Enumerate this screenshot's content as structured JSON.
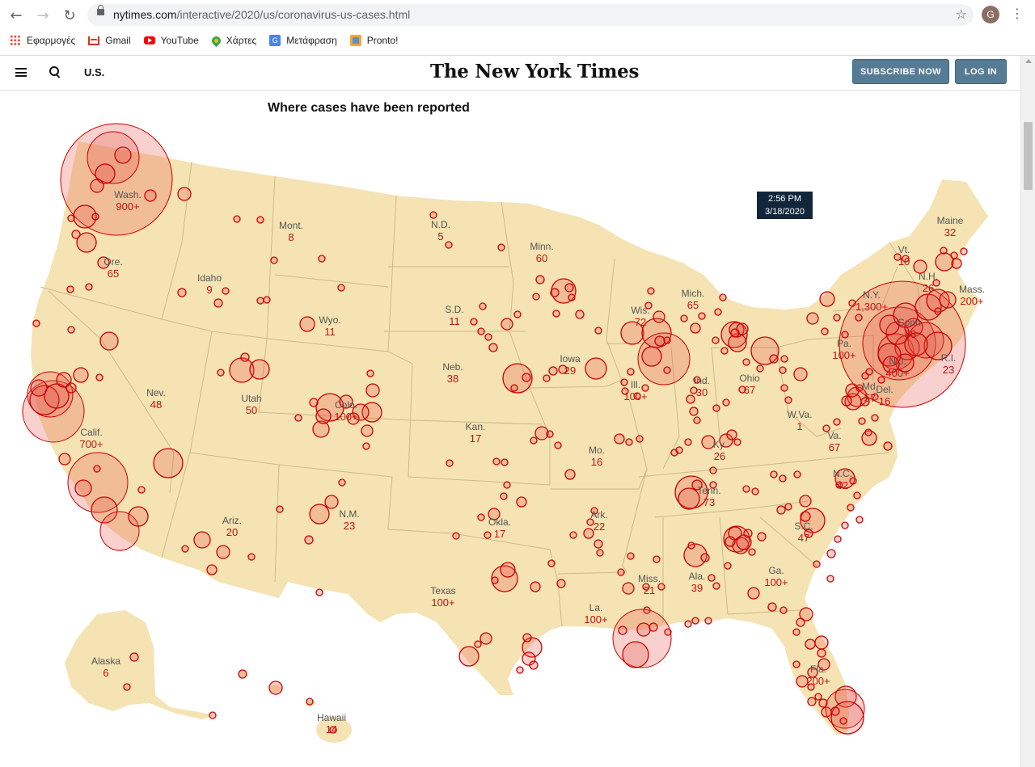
{
  "browser": {
    "url_host": "nytimes.com",
    "url_path": "/interactive/2020/us/coronavirus-us-cases.html",
    "profile_initial": "G",
    "bookmarks": [
      {
        "label": "Εφαρμογές",
        "icon": "apps-icon"
      },
      {
        "label": "Gmail",
        "icon": "gmail-icon"
      },
      {
        "label": "YouTube",
        "icon": "youtube-icon"
      },
      {
        "label": "Χάρτες",
        "icon": "maps-icon"
      },
      {
        "label": "Μετάφραση",
        "icon": "translate-icon"
      },
      {
        "label": "Pronto!",
        "icon": "pronto-icon"
      }
    ]
  },
  "header": {
    "section": "U.S.",
    "logo": "The New York Times",
    "subscribe_label": "SUBSCRIBE NOW",
    "login_label": "LOG IN",
    "button_color": "#567b95"
  },
  "map": {
    "title": "Where cases have been reported",
    "timestamp_time": "2:56 PM",
    "timestamp_date": "3/18/2020",
    "land_color": "#f5e3b3",
    "circle_stroke": "#cc0000",
    "circle_fill": "rgba(230,90,80,0.28)",
    "states": [
      {
        "name": "Wash.",
        "count": "900+"
      },
      {
        "name": "Ore.",
        "count": "65"
      },
      {
        "name": "Calif.",
        "count": "700+"
      },
      {
        "name": "Nev.",
        "count": "48"
      },
      {
        "name": "Idaho",
        "count": "9"
      },
      {
        "name": "Mont.",
        "count": "8"
      },
      {
        "name": "Wyo.",
        "count": "11"
      },
      {
        "name": "Utah",
        "count": "50"
      },
      {
        "name": "Colo.",
        "count": "100+"
      },
      {
        "name": "Ariz.",
        "count": "20"
      },
      {
        "name": "N.M.",
        "count": "23"
      },
      {
        "name": "N.D.",
        "count": "5"
      },
      {
        "name": "S.D.",
        "count": "11"
      },
      {
        "name": "Neb.",
        "count": "38"
      },
      {
        "name": "Kan.",
        "count": "17"
      },
      {
        "name": "Okla.",
        "count": "17"
      },
      {
        "name": "Texas",
        "count": "100+"
      },
      {
        "name": "Minn.",
        "count": "60"
      },
      {
        "name": "Iowa",
        "count": "29"
      },
      {
        "name": "Mo.",
        "count": "16"
      },
      {
        "name": "Ark.",
        "count": "22"
      },
      {
        "name": "La.",
        "count": "100+"
      },
      {
        "name": "Wis.",
        "count": "72"
      },
      {
        "name": "Ill.",
        "count": "100+"
      },
      {
        "name": "Mich.",
        "count": "65"
      },
      {
        "name": "Ind.",
        "count": "30"
      },
      {
        "name": "Ohio",
        "count": "67"
      },
      {
        "name": "Ky.",
        "count": "26"
      },
      {
        "name": "Tenn.",
        "count": "73"
      },
      {
        "name": "Miss.",
        "count": "21"
      },
      {
        "name": "Ala.",
        "count": "39"
      },
      {
        "name": "Ga.",
        "count": "100+"
      },
      {
        "name": "Fla.",
        "count": "200+"
      },
      {
        "name": "S.C.",
        "count": "47"
      },
      {
        "name": "N.C.",
        "count": "42"
      },
      {
        "name": "Va.",
        "count": "67"
      },
      {
        "name": "W.Va.",
        "count": "1"
      },
      {
        "name": "Pa.",
        "count": "100+"
      },
      {
        "name": "N.Y.",
        "count": "1,300+"
      },
      {
        "name": "Vt.",
        "count": "10"
      },
      {
        "name": "N.H.",
        "count": "26"
      },
      {
        "name": "Maine",
        "count": "32"
      },
      {
        "name": "Mass.",
        "count": "200+"
      },
      {
        "name": "R.I.",
        "count": "23"
      },
      {
        "name": "Conn.",
        "count": "68"
      },
      {
        "name": "N.J.",
        "count": "400+"
      },
      {
        "name": "Del.",
        "count": "16"
      },
      {
        "name": "Md.",
        "count": "57"
      },
      {
        "name": "Alaska",
        "count": "6"
      },
      {
        "name": "Hawaii",
        "count": "14"
      }
    ]
  }
}
